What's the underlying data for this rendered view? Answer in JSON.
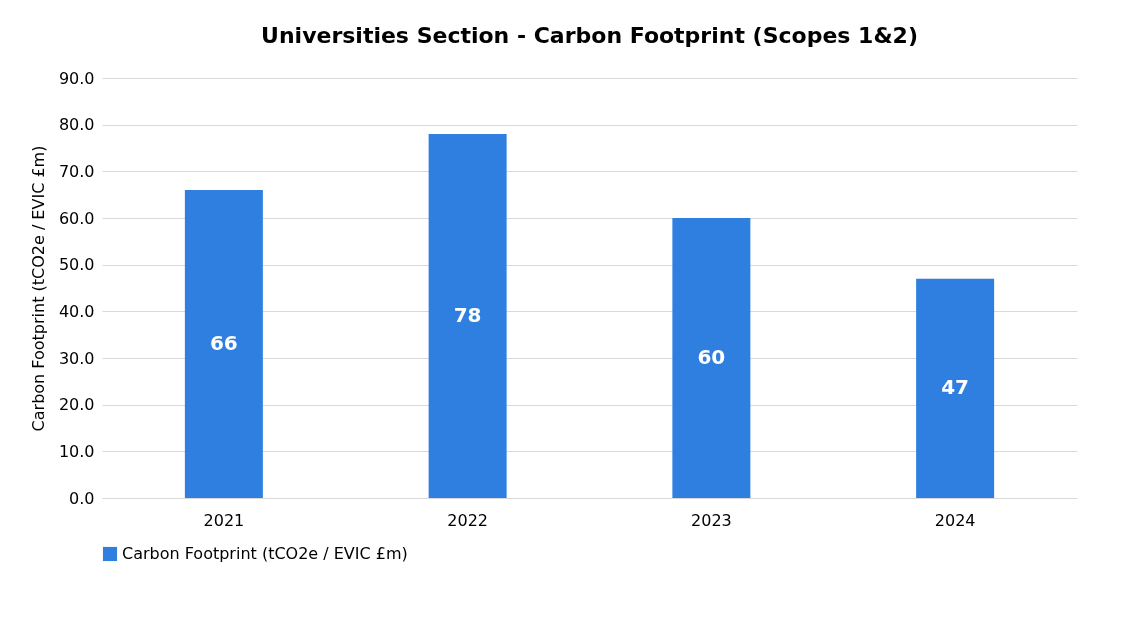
{
  "chart_data": {
    "type": "bar",
    "title": "Universities Section - Carbon Footprint (Scopes 1&2)",
    "ylabel": "Carbon Footprint (tCO2e / EVIC £m)",
    "categories": [
      "2021",
      "2022",
      "2023",
      "2024"
    ],
    "series": [
      {
        "name": "Carbon Footprint (tCO2e / EVIC £m)",
        "color": "#2e7fe0",
        "values": [
          66,
          78,
          60,
          47
        ]
      }
    ],
    "ylim": [
      0,
      90
    ],
    "yticks": [
      {
        "value": 0,
        "label": "0.0"
      },
      {
        "value": 10,
        "label": "10.0"
      },
      {
        "value": 20,
        "label": "20.0"
      },
      {
        "value": 30,
        "label": "30.0"
      },
      {
        "value": 40,
        "label": "40.0"
      },
      {
        "value": 50,
        "label": "50.0"
      },
      {
        "value": 60,
        "label": "60.0"
      },
      {
        "value": 70,
        "label": "70.0"
      },
      {
        "value": 80,
        "label": "80.0"
      },
      {
        "value": 90,
        "label": "90.0"
      }
    ],
    "grid": "y",
    "legend": "bottom",
    "data_labels": true
  }
}
